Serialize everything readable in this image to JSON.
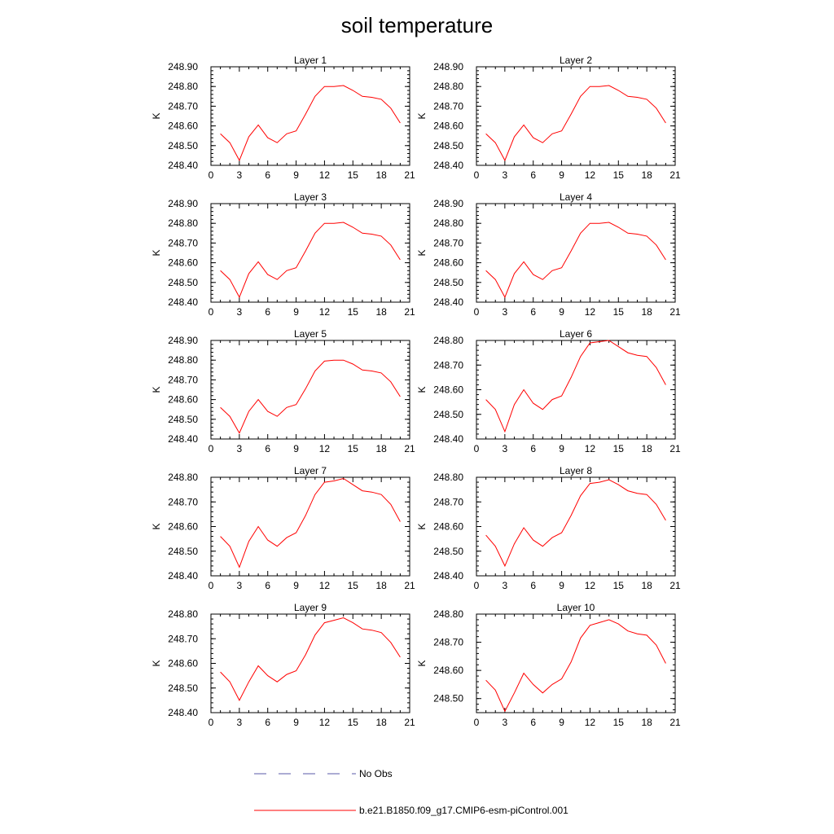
{
  "title": "soil temperature",
  "legend": [
    {
      "label": "No Obs",
      "color": "#5a5aa8",
      "dashed": true
    },
    {
      "label": "b.e21.B1850.f09_g17.CMIP6-esm-piControl.001",
      "color": "#ff0000",
      "dashed": false
    }
  ],
  "chart_data": [
    {
      "type": "line",
      "title": "Layer 1",
      "ylabel": "K",
      "xlim": [
        0,
        21
      ],
      "ylim": [
        248.4,
        248.9
      ],
      "xticks": [
        "0",
        "3",
        "6",
        "9",
        "12",
        "15",
        "18",
        "21"
      ],
      "yticks": [
        "248.40",
        "248.50",
        "248.60",
        "248.70",
        "248.80",
        "248.90"
      ],
      "series": [
        {
          "color": "#ff0000",
          "x": [
            1,
            2,
            3,
            4,
            5,
            6,
            7,
            8,
            9,
            10,
            11,
            12,
            13,
            14,
            15,
            16,
            17,
            18,
            19,
            20
          ],
          "y": [
            248.56,
            248.515,
            248.425,
            248.545,
            248.605,
            248.54,
            248.515,
            248.56,
            248.575,
            248.66,
            248.75,
            248.8,
            248.8,
            248.805,
            248.78,
            248.75,
            248.745,
            248.735,
            248.69,
            248.615
          ]
        }
      ]
    },
    {
      "type": "line",
      "title": "Layer 2",
      "ylabel": "K",
      "xlim": [
        0,
        21
      ],
      "ylim": [
        248.4,
        248.9
      ],
      "xticks": [
        "0",
        "3",
        "6",
        "9",
        "12",
        "15",
        "18",
        "21"
      ],
      "yticks": [
        "248.40",
        "248.50",
        "248.60",
        "248.70",
        "248.80",
        "248.90"
      ],
      "series": [
        {
          "color": "#ff0000",
          "x": [
            1,
            2,
            3,
            4,
            5,
            6,
            7,
            8,
            9,
            10,
            11,
            12,
            13,
            14,
            15,
            16,
            17,
            18,
            19,
            20
          ],
          "y": [
            248.56,
            248.515,
            248.425,
            248.545,
            248.605,
            248.54,
            248.515,
            248.56,
            248.575,
            248.66,
            248.75,
            248.8,
            248.8,
            248.805,
            248.78,
            248.75,
            248.745,
            248.735,
            248.69,
            248.615
          ]
        }
      ]
    },
    {
      "type": "line",
      "title": "Layer 3",
      "ylabel": "K",
      "xlim": [
        0,
        21
      ],
      "ylim": [
        248.4,
        248.9
      ],
      "xticks": [
        "0",
        "3",
        "6",
        "9",
        "12",
        "15",
        "18",
        "21"
      ],
      "yticks": [
        "248.40",
        "248.50",
        "248.60",
        "248.70",
        "248.80",
        "248.90"
      ],
      "series": [
        {
          "color": "#ff0000",
          "x": [
            1,
            2,
            3,
            4,
            5,
            6,
            7,
            8,
            9,
            10,
            11,
            12,
            13,
            14,
            15,
            16,
            17,
            18,
            19,
            20
          ],
          "y": [
            248.56,
            248.515,
            248.425,
            248.545,
            248.605,
            248.54,
            248.515,
            248.56,
            248.575,
            248.66,
            248.75,
            248.8,
            248.8,
            248.805,
            248.78,
            248.75,
            248.745,
            248.735,
            248.69,
            248.615
          ]
        }
      ]
    },
    {
      "type": "line",
      "title": "Layer 4",
      "ylabel": "K",
      "xlim": [
        0,
        21
      ],
      "ylim": [
        248.4,
        248.9
      ],
      "xticks": [
        "0",
        "3",
        "6",
        "9",
        "12",
        "15",
        "18",
        "21"
      ],
      "yticks": [
        "248.40",
        "248.50",
        "248.60",
        "248.70",
        "248.80",
        "248.90"
      ],
      "series": [
        {
          "color": "#ff0000",
          "x": [
            1,
            2,
            3,
            4,
            5,
            6,
            7,
            8,
            9,
            10,
            11,
            12,
            13,
            14,
            15,
            16,
            17,
            18,
            19,
            20
          ],
          "y": [
            248.56,
            248.515,
            248.425,
            248.545,
            248.605,
            248.54,
            248.515,
            248.56,
            248.575,
            248.66,
            248.75,
            248.8,
            248.8,
            248.805,
            248.78,
            248.75,
            248.745,
            248.735,
            248.69,
            248.615
          ]
        }
      ]
    },
    {
      "type": "line",
      "title": "Layer 5",
      "ylabel": "K",
      "xlim": [
        0,
        21
      ],
      "ylim": [
        248.4,
        248.9
      ],
      "xticks": [
        "0",
        "3",
        "6",
        "9",
        "12",
        "15",
        "18",
        "21"
      ],
      "yticks": [
        "248.40",
        "248.50",
        "248.60",
        "248.70",
        "248.80",
        "248.90"
      ],
      "series": [
        {
          "color": "#ff0000",
          "x": [
            1,
            2,
            3,
            4,
            5,
            6,
            7,
            8,
            9,
            10,
            11,
            12,
            13,
            14,
            15,
            16,
            17,
            18,
            19,
            20
          ],
          "y": [
            248.56,
            248.515,
            248.43,
            248.54,
            248.6,
            248.54,
            248.515,
            248.56,
            248.575,
            248.655,
            248.745,
            248.795,
            248.8,
            248.8,
            248.78,
            248.75,
            248.745,
            248.735,
            248.69,
            248.615
          ]
        }
      ]
    },
    {
      "type": "line",
      "title": "Layer 6",
      "ylabel": "K",
      "xlim": [
        0,
        21
      ],
      "ylim": [
        248.4,
        248.8
      ],
      "xticks": [
        "0",
        "3",
        "6",
        "9",
        "12",
        "15",
        "18",
        "21"
      ],
      "yticks": [
        "248.40",
        "248.50",
        "248.60",
        "248.70",
        "248.80"
      ],
      "series": [
        {
          "color": "#ff0000",
          "x": [
            1,
            2,
            3,
            4,
            5,
            6,
            7,
            8,
            9,
            10,
            11,
            12,
            13,
            14,
            15,
            16,
            17,
            18,
            19,
            20
          ],
          "y": [
            248.56,
            248.52,
            248.43,
            248.54,
            248.6,
            248.545,
            248.52,
            248.56,
            248.575,
            248.65,
            248.735,
            248.79,
            248.795,
            248.8,
            248.775,
            248.75,
            248.74,
            248.735,
            248.69,
            248.62
          ]
        }
      ]
    },
    {
      "type": "line",
      "title": "Layer 7",
      "ylabel": "K",
      "xlim": [
        0,
        21
      ],
      "ylim": [
        248.4,
        248.8
      ],
      "xticks": [
        "0",
        "3",
        "6",
        "9",
        "12",
        "15",
        "18",
        "21"
      ],
      "yticks": [
        "248.40",
        "248.50",
        "248.60",
        "248.70",
        "248.80"
      ],
      "series": [
        {
          "color": "#ff0000",
          "x": [
            1,
            2,
            3,
            4,
            5,
            6,
            7,
            8,
            9,
            10,
            11,
            12,
            13,
            14,
            15,
            16,
            17,
            18,
            19,
            20
          ],
          "y": [
            248.56,
            248.52,
            248.435,
            248.54,
            248.6,
            248.545,
            248.52,
            248.555,
            248.575,
            248.645,
            248.73,
            248.78,
            248.785,
            248.795,
            248.77,
            248.745,
            248.74,
            248.73,
            248.69,
            248.62
          ]
        }
      ]
    },
    {
      "type": "line",
      "title": "Layer 8",
      "ylabel": "K",
      "xlim": [
        0,
        21
      ],
      "ylim": [
        248.4,
        248.8
      ],
      "xticks": [
        "0",
        "3",
        "6",
        "9",
        "12",
        "15",
        "18",
        "21"
      ],
      "yticks": [
        "248.40",
        "248.50",
        "248.60",
        "248.70",
        "248.80"
      ],
      "series": [
        {
          "color": "#ff0000",
          "x": [
            1,
            2,
            3,
            4,
            5,
            6,
            7,
            8,
            9,
            10,
            11,
            12,
            13,
            14,
            15,
            16,
            17,
            18,
            19,
            20
          ],
          "y": [
            248.565,
            248.52,
            248.44,
            248.53,
            248.595,
            248.545,
            248.52,
            248.555,
            248.575,
            248.645,
            248.725,
            248.775,
            248.78,
            248.79,
            248.77,
            248.745,
            248.735,
            248.73,
            248.69,
            248.625
          ]
        }
      ]
    },
    {
      "type": "line",
      "title": "Layer 9",
      "ylabel": "K",
      "xlim": [
        0,
        21
      ],
      "ylim": [
        248.4,
        248.8
      ],
      "xticks": [
        "0",
        "3",
        "6",
        "9",
        "12",
        "15",
        "18",
        "21"
      ],
      "yticks": [
        "248.40",
        "248.50",
        "248.60",
        "248.70",
        "248.80"
      ],
      "series": [
        {
          "color": "#ff0000",
          "x": [
            1,
            2,
            3,
            4,
            5,
            6,
            7,
            8,
            9,
            10,
            11,
            12,
            13,
            14,
            15,
            16,
            17,
            18,
            19,
            20
          ],
          "y": [
            248.565,
            248.525,
            248.45,
            248.525,
            248.59,
            248.55,
            248.525,
            248.555,
            248.57,
            248.635,
            248.715,
            248.765,
            248.775,
            248.785,
            248.765,
            248.74,
            248.735,
            248.725,
            248.685,
            248.625
          ]
        }
      ]
    },
    {
      "type": "line",
      "title": "Layer 10",
      "ylabel": "K",
      "xlim": [
        0,
        21
      ],
      "ylim": [
        248.45,
        248.8
      ],
      "xticks": [
        "0",
        "3",
        "6",
        "9",
        "12",
        "15",
        "18",
        "21"
      ],
      "yticks": [
        "248.50",
        "248.60",
        "248.70",
        "248.80"
      ],
      "series": [
        {
          "color": "#ff0000",
          "x": [
            1,
            2,
            3,
            4,
            5,
            6,
            7,
            8,
            9,
            10,
            11,
            12,
            13,
            14,
            15,
            16,
            17,
            18,
            19,
            20
          ],
          "y": [
            248.565,
            248.53,
            248.455,
            248.52,
            248.59,
            248.55,
            248.52,
            248.55,
            248.57,
            248.63,
            248.715,
            248.76,
            248.77,
            248.78,
            248.765,
            248.74,
            248.73,
            248.725,
            248.69,
            248.625
          ]
        }
      ]
    }
  ]
}
